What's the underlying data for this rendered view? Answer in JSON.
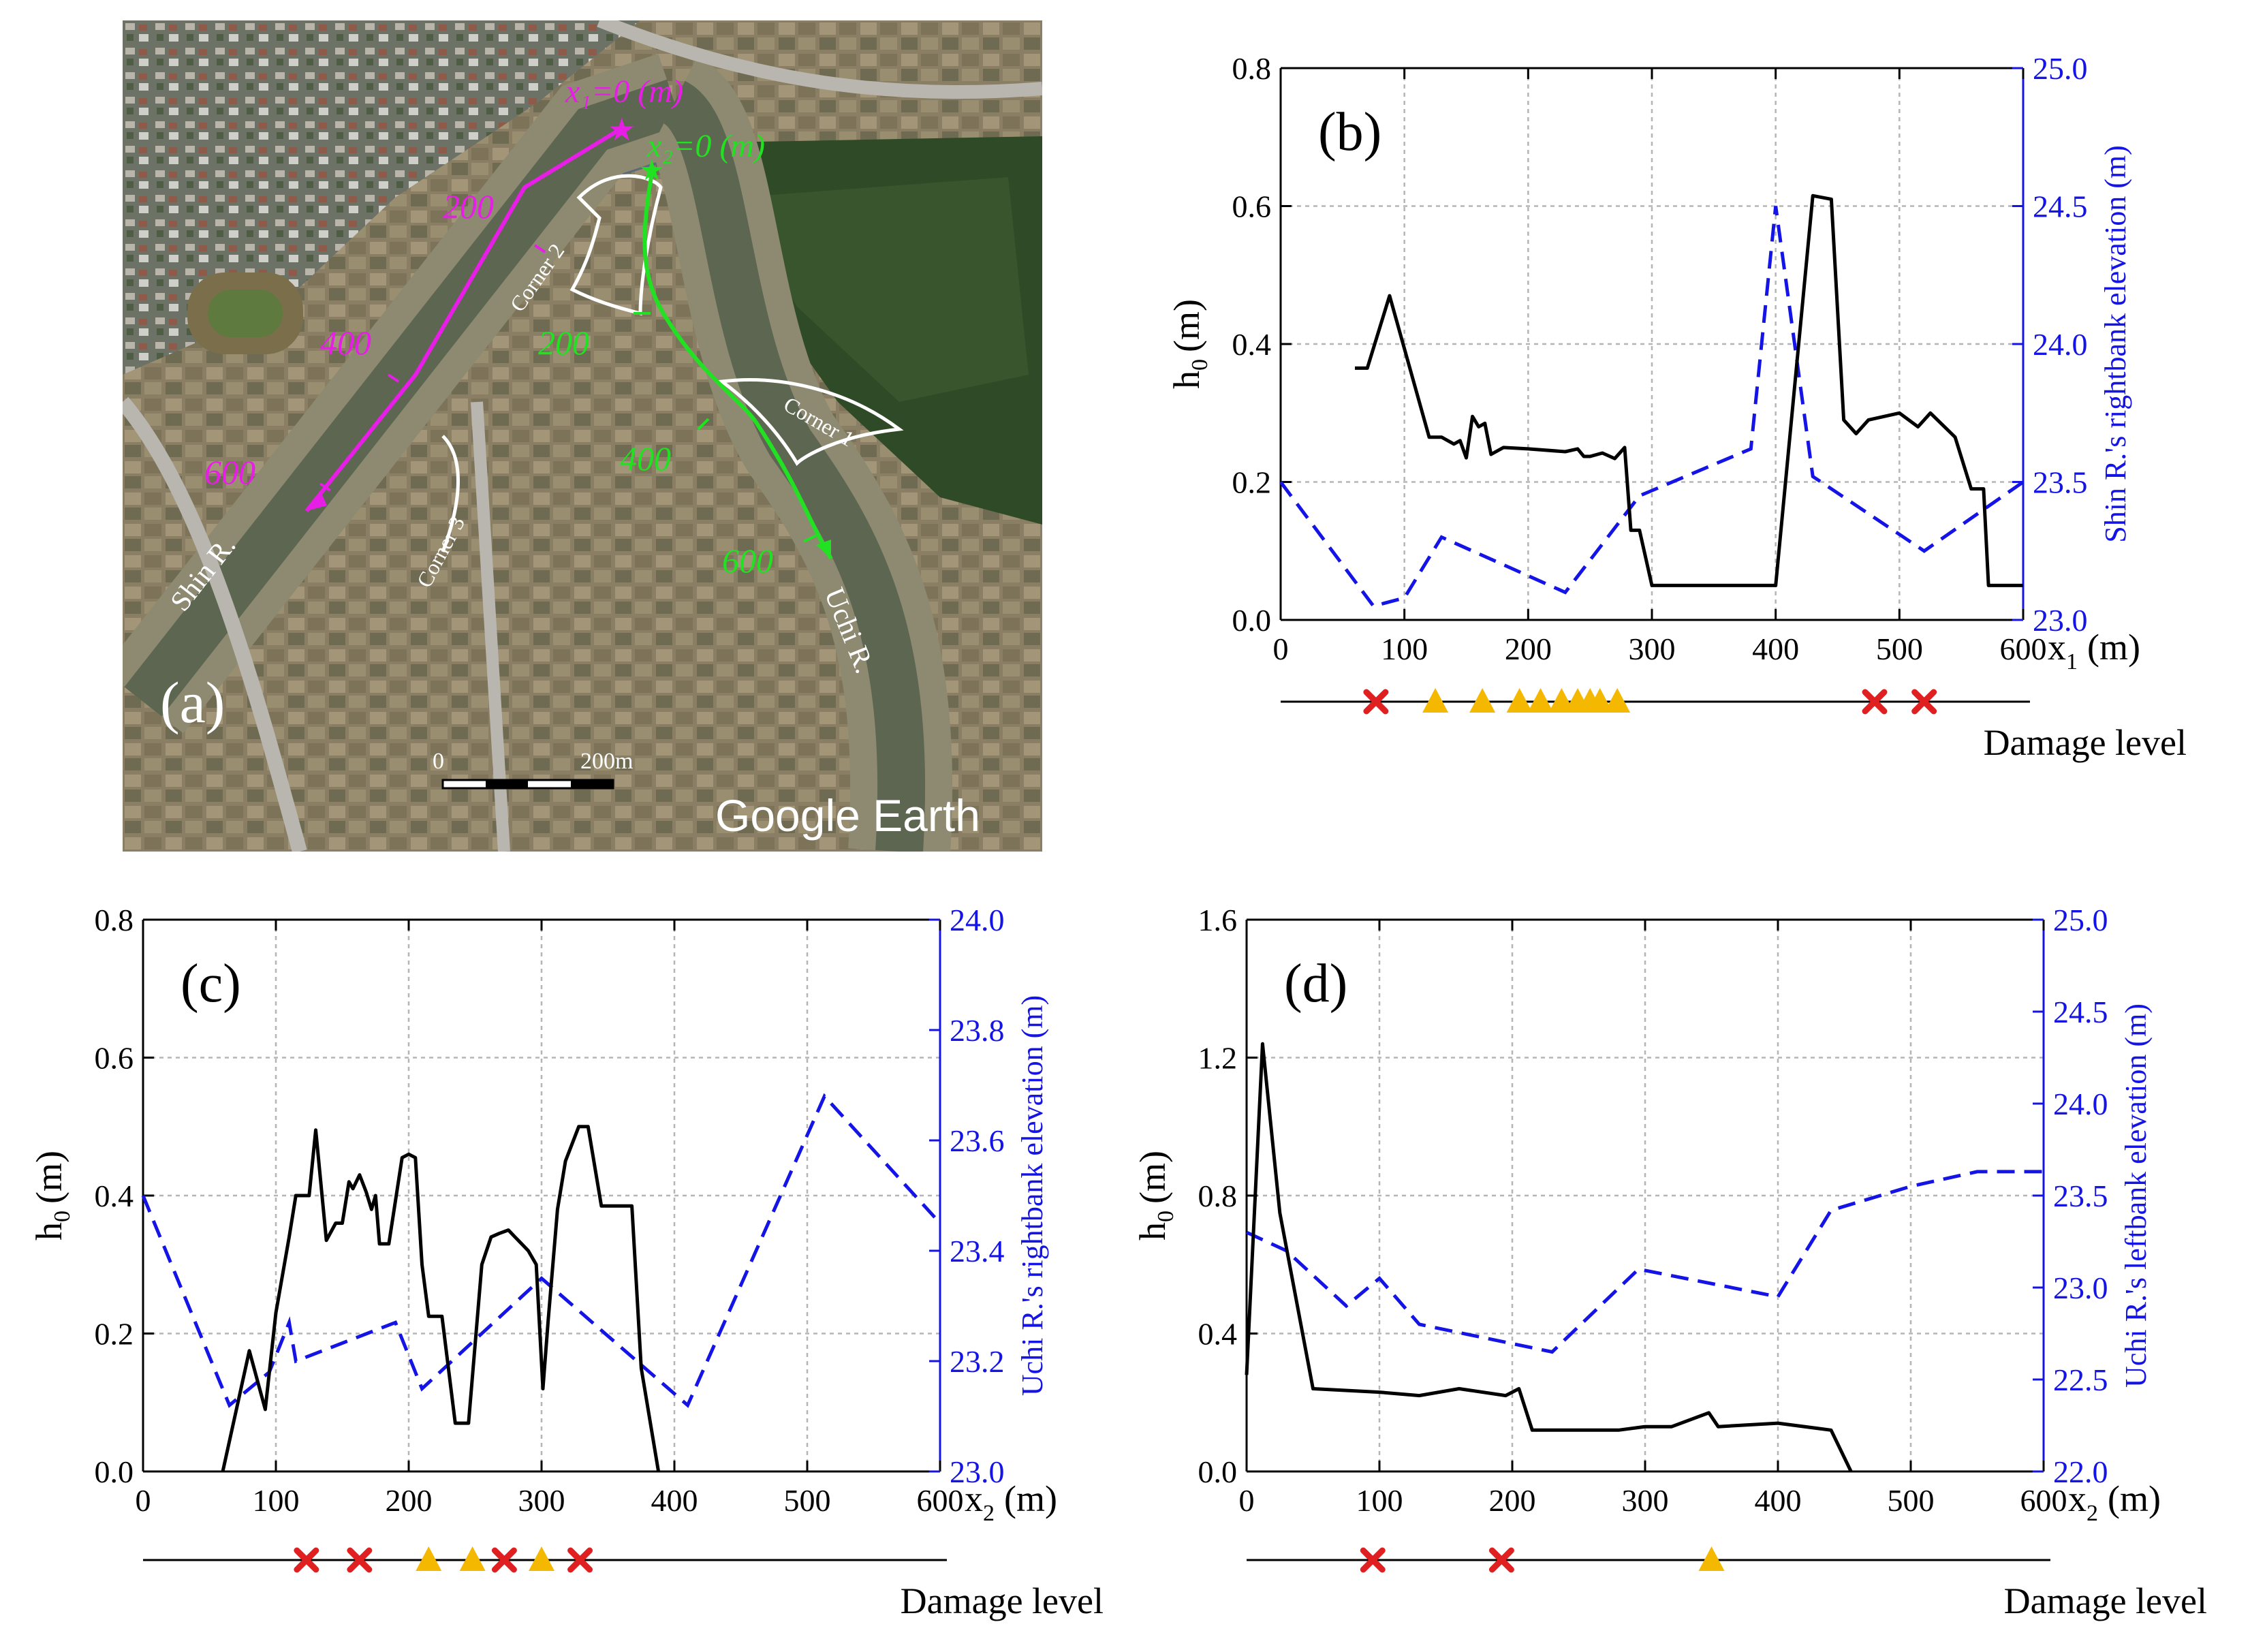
{
  "colors": {
    "h0": "#000000",
    "elev": "#1414e6",
    "magenta": "#e61ee6",
    "green": "#22e022",
    "white": "#ffffff",
    "cross": "#e02020",
    "tri": "#f5b800"
  },
  "panel_a": {
    "label": "(a)",
    "x1_label": "x₁=0 (m)",
    "x2_label": "x₂=0 (m)",
    "x1_ticks": [
      "200",
      "400",
      "600"
    ],
    "x2_ticks": [
      "200",
      "400",
      "600"
    ],
    "corner_labels": [
      "Corner 1",
      "Corner 2",
      "Corner 3"
    ],
    "river_labels": [
      "Shin R.",
      "Uchi R."
    ],
    "scale_labels": [
      "0",
      "200m"
    ],
    "watermark": "Google Earth"
  },
  "chart_data": [
    {
      "id": "b",
      "type": "line",
      "label": "(b)",
      "xlabel": "x",
      "xlabel_sub": "1",
      "xlabel_unit": "(m)",
      "ylabel": "h",
      "ylabel_sub": "0",
      "ylabel_unit": "(m)",
      "y2label": "Shin R.'s rightbank elevation (m)",
      "xlim": [
        0,
        600
      ],
      "ylim": [
        0,
        0.8
      ],
      "y2lim": [
        23.0,
        25.0
      ],
      "xticks": [
        0,
        100,
        200,
        300,
        400,
        500,
        600
      ],
      "xtick_labels": [
        "0",
        "100",
        "200",
        "300",
        "400",
        "500",
        "600"
      ],
      "yticks": [
        0,
        0.2,
        0.4,
        0.6,
        0.8
      ],
      "ytick_labels": [
        "0.0",
        "0.2",
        "0.4",
        "0.6",
        "0.8"
      ],
      "y2ticks": [
        23.0,
        23.5,
        24.0,
        24.5,
        25.0
      ],
      "y2tick_labels": [
        "23.0",
        "23.5",
        "24.0",
        "24.5",
        "25.0"
      ],
      "grid": true,
      "h0": {
        "x": [
          60,
          70,
          88,
          120,
          130,
          140,
          145,
          150,
          155,
          160,
          165,
          170,
          180,
          200,
          230,
          240,
          245,
          250,
          260,
          270,
          278,
          283,
          290,
          300,
          400,
          430,
          445,
          455,
          465,
          475,
          500,
          515,
          525,
          545,
          558,
          568,
          572,
          600
        ],
        "y": [
          0.365,
          0.365,
          0.47,
          0.265,
          0.265,
          0.255,
          0.26,
          0.235,
          0.295,
          0.28,
          0.285,
          0.24,
          0.25,
          0.248,
          0.244,
          0.248,
          0.237,
          0.237,
          0.242,
          0.234,
          0.25,
          0.13,
          0.13,
          0.05,
          0.05,
          0.615,
          0.61,
          0.29,
          0.27,
          0.29,
          0.3,
          0.28,
          0.3,
          0.265,
          0.19,
          0.19,
          0.05,
          0.05
        ]
      },
      "elev": {
        "x": [
          0,
          75,
          100,
          130,
          230,
          290,
          380,
          400,
          430,
          520,
          600
        ],
        "y": [
          23.5,
          23.05,
          23.08,
          23.3,
          23.1,
          23.45,
          23.62,
          24.5,
          23.52,
          23.25,
          23.5
        ]
      },
      "damage": {
        "label": "Damage level",
        "crosses": [
          77,
          480,
          520
        ],
        "triangles": [
          125,
          163,
          193,
          210,
          227,
          240,
          250,
          258,
          272
        ]
      }
    },
    {
      "id": "c",
      "type": "line",
      "label": "(c)",
      "xlabel": "x",
      "xlabel_sub": "2",
      "xlabel_unit": "(m)",
      "ylabel": "h",
      "ylabel_sub": "0",
      "ylabel_unit": "(m)",
      "y2label": "Uchi R.'s rightbank elevation (m)",
      "xlim": [
        0,
        600
      ],
      "ylim": [
        0,
        0.8
      ],
      "y2lim": [
        23.0,
        24.0
      ],
      "xticks": [
        0,
        100,
        200,
        300,
        400,
        500,
        600
      ],
      "xtick_labels": [
        "0",
        "100",
        "200",
        "300",
        "400",
        "500",
        "600"
      ],
      "yticks": [
        0,
        0.2,
        0.4,
        0.6,
        0.8
      ],
      "ytick_labels": [
        "0.0",
        "0.2",
        "0.4",
        "0.6",
        "0.8"
      ],
      "y2ticks": [
        23.0,
        23.2,
        23.4,
        23.6,
        23.8,
        24.0
      ],
      "y2tick_labels": [
        "23.0",
        "23.2",
        "23.4",
        "23.6",
        "23.8",
        "24.0"
      ],
      "grid": true,
      "h0": {
        "x": [
          60,
          80,
          92,
          100,
          110,
          115,
          125,
          130,
          138,
          145,
          150,
          155,
          158,
          163,
          168,
          172,
          175,
          178,
          185,
          195,
          200,
          205,
          210,
          215,
          225,
          235,
          245,
          255,
          262,
          268,
          275,
          280,
          285,
          290,
          296,
          301,
          305,
          312,
          318,
          328,
          335,
          345,
          360,
          368,
          375,
          388
        ],
        "y": [
          0,
          0.175,
          0.09,
          0.23,
          0.34,
          0.4,
          0.4,
          0.495,
          0.335,
          0.36,
          0.36,
          0.42,
          0.41,
          0.43,
          0.405,
          0.38,
          0.4,
          0.33,
          0.33,
          0.455,
          0.46,
          0.455,
          0.3,
          0.225,
          0.225,
          0.07,
          0.07,
          0.3,
          0.34,
          0.345,
          0.35,
          0.34,
          0.33,
          0.32,
          0.3,
          0.12,
          0.22,
          0.38,
          0.45,
          0.5,
          0.5,
          0.385,
          0.385,
          0.385,
          0.15,
          0
        ]
      },
      "elev": {
        "x": [
          0,
          65,
          95,
          110,
          115,
          190,
          210,
          300,
          410,
          513,
          600
        ],
        "y": [
          23.5,
          23.12,
          23.18,
          23.27,
          23.2,
          23.27,
          23.15,
          23.35,
          23.12,
          23.68,
          23.45
        ]
      },
      "damage": {
        "label": "Damage level",
        "crosses": [
          123,
          163,
          272,
          329
        ],
        "triangles": [
          215,
          248,
          300
        ]
      }
    },
    {
      "id": "d",
      "type": "line",
      "label": "(d)",
      "xlabel": "x",
      "xlabel_sub": "2",
      "xlabel_unit": "(m)",
      "ylabel": "h",
      "ylabel_sub": "0",
      "ylabel_unit": "(m)",
      "y2label": "Uchi R.'s leftbank elevation (m)",
      "xlim": [
        0,
        600
      ],
      "ylim": [
        0,
        1.6
      ],
      "y2lim": [
        22.0,
        25.0
      ],
      "xticks": [
        0,
        100,
        200,
        300,
        400,
        500,
        600
      ],
      "xtick_labels": [
        "0",
        "100",
        "200",
        "300",
        "400",
        "500",
        "600"
      ],
      "yticks": [
        0,
        0.4,
        0.8,
        1.2,
        1.6
      ],
      "ytick_labels": [
        "0.0",
        "0.4",
        "0.8",
        "1.2",
        "1.6"
      ],
      "y2ticks": [
        22.0,
        22.5,
        23.0,
        23.5,
        24.0,
        24.5,
        25.0
      ],
      "y2tick_labels": [
        "22.0",
        "22.5",
        "23.0",
        "23.5",
        "24.0",
        "24.5",
        "25.0"
      ],
      "grid": true,
      "h0": {
        "x": [
          0,
          12,
          25,
          50,
          100,
          130,
          160,
          195,
          205,
          215,
          240,
          280,
          300,
          320,
          348,
          355,
          400,
          440,
          455
        ],
        "y": [
          0.28,
          1.24,
          0.75,
          0.24,
          0.23,
          0.22,
          0.24,
          0.22,
          0.24,
          0.12,
          0.12,
          0.12,
          0.13,
          0.13,
          0.17,
          0.13,
          0.14,
          0.12,
          0
        ]
      },
      "elev": {
        "x": [
          0,
          30,
          75,
          100,
          130,
          230,
          295,
          400,
          440,
          500,
          550,
          600
        ],
        "y": [
          23.3,
          23.2,
          22.9,
          23.05,
          22.8,
          22.65,
          23.1,
          22.95,
          23.42,
          23.55,
          23.63,
          23.63
        ]
      },
      "damage": {
        "label": "Damage level",
        "crosses": [
          95,
          192
        ],
        "triangles": [
          350
        ]
      }
    }
  ]
}
